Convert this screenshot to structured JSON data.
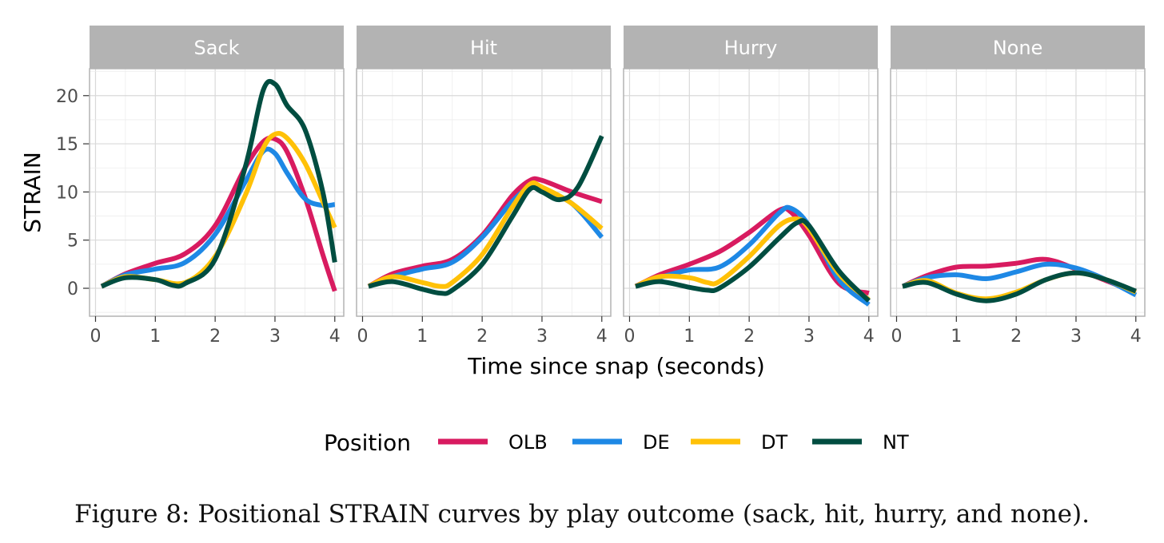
{
  "chart_data": {
    "type": "line",
    "ylabel": "STRAIN",
    "xlabel": "Time since snap (seconds)",
    "xlim": [
      -0.1,
      4.15
    ],
    "ylim": [
      -2.9,
      22.8
    ],
    "x_ticks": [
      0,
      1,
      2,
      3,
      4
    ],
    "y_ticks": [
      0,
      5,
      10,
      15,
      20
    ],
    "grid": true,
    "legend": {
      "title": "Position",
      "placement": "bottom",
      "entries": [
        {
          "name": "OLB",
          "color": "#D81B60"
        },
        {
          "name": "DE",
          "color": "#1E88E5"
        },
        {
          "name": "DT",
          "color": "#FFC107"
        },
        {
          "name": "NT",
          "color": "#004D40"
        }
      ]
    },
    "panels": [
      {
        "title": "Sack",
        "series": [
          {
            "name": "OLB",
            "x": [
              0.1,
              0.5,
              1.0,
              1.5,
              2.0,
              2.5,
              2.8,
              3.0,
              3.2,
              3.5,
              3.8,
              4.0
            ],
            "y": [
              0.2,
              1.5,
              2.6,
              3.6,
              6.5,
              12.5,
              15.2,
              15.5,
              14.2,
              9.5,
              3.5,
              -0.3
            ]
          },
          {
            "name": "DE",
            "x": [
              0.1,
              0.5,
              1.0,
              1.5,
              2.0,
              2.5,
              2.8,
              3.0,
              3.2,
              3.5,
              3.8,
              4.0
            ],
            "y": [
              0.2,
              1.4,
              2.0,
              2.7,
              5.6,
              11.0,
              14.2,
              14.0,
              12.0,
              9.3,
              8.6,
              8.7
            ]
          },
          {
            "name": "DT",
            "x": [
              0.1,
              0.5,
              1.0,
              1.5,
              2.0,
              2.5,
              2.8,
              3.0,
              3.2,
              3.5,
              3.8,
              4.0
            ],
            "y": [
              0.2,
              1.2,
              0.9,
              0.6,
              3.3,
              9.6,
              14.5,
              16.0,
              15.6,
              13.0,
              9.0,
              6.3
            ]
          },
          {
            "name": "NT",
            "x": [
              0.1,
              0.5,
              1.0,
              1.3,
              1.5,
              2.0,
              2.5,
              2.8,
              3.0,
              3.2,
              3.5,
              3.8,
              4.0
            ],
            "y": [
              0.2,
              1.1,
              0.9,
              0.3,
              0.5,
              3.0,
              12.5,
              20.5,
              21.2,
              19.0,
              16.5,
              10.0,
              2.7
            ]
          }
        ]
      },
      {
        "title": "Hit",
        "series": [
          {
            "name": "OLB",
            "x": [
              0.1,
              0.5,
              1.0,
              1.5,
              2.0,
              2.5,
              2.8,
              3.0,
              3.5,
              4.0
            ],
            "y": [
              0.2,
              1.5,
              2.3,
              3.0,
              5.5,
              9.6,
              11.2,
              11.2,
              10.0,
              9.0
            ]
          },
          {
            "name": "DE",
            "x": [
              0.1,
              0.5,
              1.0,
              1.5,
              2.0,
              2.5,
              2.8,
              3.0,
              3.5,
              4.0
            ],
            "y": [
              0.2,
              1.2,
              2.0,
              2.7,
              5.3,
              9.0,
              10.5,
              10.2,
              8.8,
              5.3
            ]
          },
          {
            "name": "DT",
            "x": [
              0.1,
              0.5,
              1.0,
              1.3,
              1.5,
              2.0,
              2.5,
              2.8,
              3.0,
              3.5,
              4.0
            ],
            "y": [
              0.2,
              1.2,
              0.6,
              0.2,
              0.6,
              3.5,
              8.4,
              10.8,
              10.5,
              8.8,
              6.2
            ]
          },
          {
            "name": "NT",
            "x": [
              0.1,
              0.5,
              1.0,
              1.3,
              1.5,
              2.0,
              2.5,
              2.8,
              3.0,
              3.3,
              3.6,
              4.0
            ],
            "y": [
              0.2,
              0.7,
              -0.1,
              -0.5,
              -0.2,
              2.5,
              7.4,
              10.3,
              10.0,
              9.2,
              10.5,
              15.8
            ]
          }
        ]
      },
      {
        "title": "Hurry",
        "series": [
          {
            "name": "OLB",
            "x": [
              0.1,
              0.5,
              1.0,
              1.5,
              2.0,
              2.5,
              2.7,
              3.0,
              3.5,
              4.0
            ],
            "y": [
              0.2,
              1.4,
              2.5,
              3.8,
              5.8,
              8.1,
              7.9,
              5.5,
              0.5,
              -0.5
            ]
          },
          {
            "name": "DE",
            "x": [
              0.1,
              0.5,
              1.0,
              1.5,
              2.0,
              2.5,
              2.7,
              3.0,
              3.5,
              4.0
            ],
            "y": [
              0.2,
              1.1,
              1.9,
              2.2,
              4.5,
              7.8,
              8.3,
              6.5,
              0.9,
              -1.7
            ]
          },
          {
            "name": "DT",
            "x": [
              0.1,
              0.5,
              1.0,
              1.3,
              1.5,
              2.0,
              2.5,
              2.8,
              3.0,
              3.5,
              4.0
            ],
            "y": [
              0.2,
              1.2,
              1.1,
              0.6,
              0.7,
              3.3,
              6.5,
              7.2,
              6.2,
              1.5,
              -1.2
            ]
          },
          {
            "name": "NT",
            "x": [
              0.1,
              0.5,
              1.0,
              1.3,
              1.5,
              2.0,
              2.5,
              2.8,
              3.0,
              3.5,
              4.0
            ],
            "y": [
              0.2,
              0.7,
              0.1,
              -0.2,
              0.0,
              2.2,
              5.2,
              6.8,
              6.5,
              1.8,
              -1.3
            ]
          }
        ]
      },
      {
        "title": "None",
        "series": [
          {
            "name": "OLB",
            "x": [
              0.1,
              0.5,
              1.0,
              1.5,
              2.0,
              2.5,
              3.0,
              3.5,
              4.0
            ],
            "y": [
              0.2,
              1.3,
              2.2,
              2.3,
              2.6,
              3.0,
              2.0,
              0.8,
              -0.4
            ]
          },
          {
            "name": "DE",
            "x": [
              0.1,
              0.5,
              1.0,
              1.5,
              2.0,
              2.5,
              3.0,
              3.5,
              4.0
            ],
            "y": [
              0.2,
              1.1,
              1.4,
              1.0,
              1.7,
              2.5,
              2.1,
              0.9,
              -0.7
            ]
          },
          {
            "name": "DT",
            "x": [
              0.1,
              0.5,
              1.0,
              1.5,
              2.0,
              2.5,
              3.0,
              3.5,
              4.0
            ],
            "y": [
              0.2,
              0.8,
              -0.5,
              -1.1,
              -0.4,
              0.9,
              1.6,
              0.9,
              -0.4
            ]
          },
          {
            "name": "NT",
            "x": [
              0.1,
              0.5,
              1.0,
              1.5,
              2.0,
              2.5,
              3.0,
              3.5,
              4.0
            ],
            "y": [
              0.2,
              0.6,
              -0.6,
              -1.3,
              -0.6,
              0.9,
              1.6,
              0.9,
              -0.3
            ]
          }
        ]
      }
    ]
  },
  "caption": "Figure 8: Positional STRAIN curves by play outcome (sack, hit, hurry, and none)."
}
